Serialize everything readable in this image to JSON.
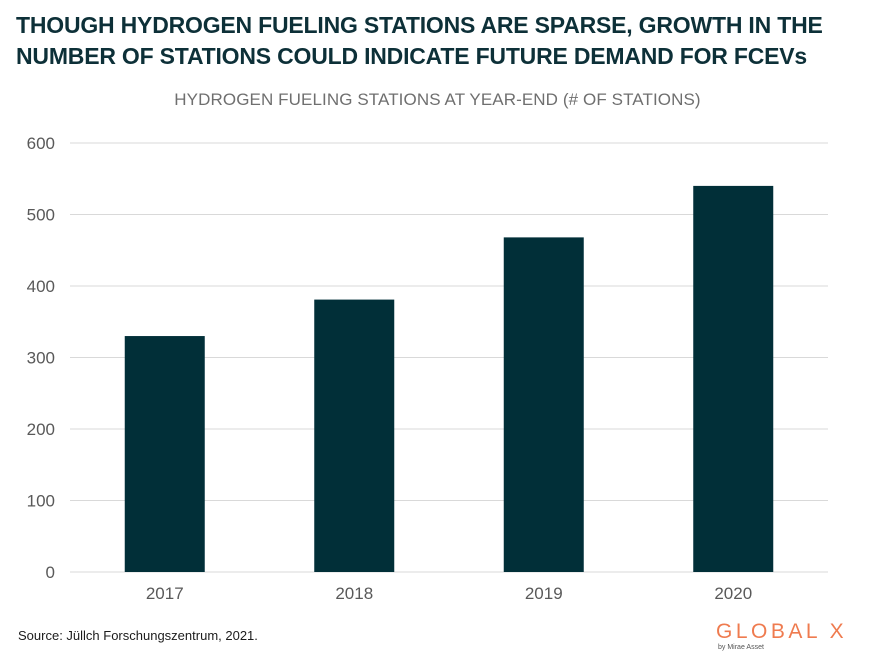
{
  "title_lines": [
    "THOUGH HYDROGEN FUELING STATIONS ARE SPARSE, GROWTH IN THE",
    "NUMBER OF STATIONS COULD INDICATE FUTURE DEMAND FOR FCEVs"
  ],
  "source": "Source: Jüllch Forschungszentrum, 2021.",
  "logo": {
    "main": "GLOBAL X",
    "sub": "by Mirae Asset"
  },
  "colors": {
    "bar": "#012f38",
    "grid": "#d9d9d9",
    "axis_text": "#595959",
    "accent": "#ef7b4f"
  },
  "chart_data": {
    "type": "bar",
    "title": "HYDROGEN FUELING STATIONS AT YEAR-END (# OF STATIONS)",
    "categories": [
      "2017",
      "2018",
      "2019",
      "2020"
    ],
    "values": [
      330,
      381,
      468,
      540
    ],
    "ylim": [
      0,
      600
    ],
    "yticks": [
      0,
      100,
      200,
      300,
      400,
      500,
      600
    ],
    "grid": true,
    "legend": "none"
  }
}
